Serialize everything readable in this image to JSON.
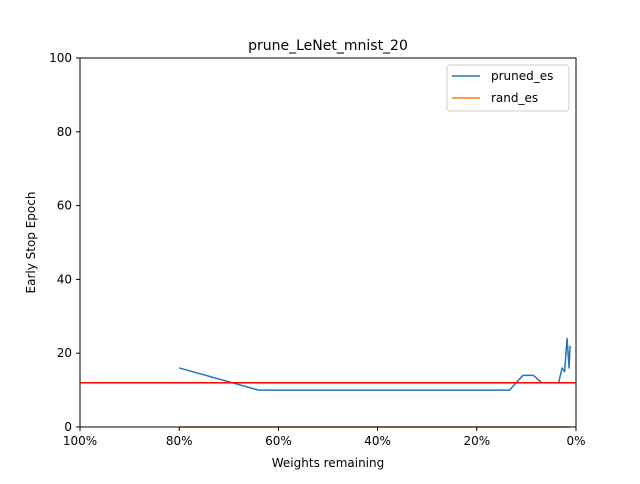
{
  "chart_data": {
    "type": "line",
    "title": "prune_LeNet_mnist_20",
    "xlabel": "Weights remaining",
    "ylabel": "Early Stop Epoch",
    "xlim": [
      100,
      0
    ],
    "ylim": [
      0,
      100
    ],
    "xticks": [
      100,
      80,
      60,
      40,
      20,
      0
    ],
    "xtick_labels": [
      "100%",
      "80%",
      "60%",
      "40%",
      "20%",
      "0%"
    ],
    "yticks": [
      0,
      20,
      40,
      60,
      80,
      100
    ],
    "ytick_labels": [
      "0",
      "20",
      "40",
      "60",
      "80",
      "100"
    ],
    "grid": false,
    "legend": "top-right",
    "series": [
      {
        "name": "pruned_es",
        "color": "#1f77b4",
        "x": [
          80,
          64,
          51.2,
          41,
          32.8,
          26.2,
          21,
          16.8,
          13.4,
          10.7,
          8.6,
          6.9,
          5.5,
          4.4,
          3.5,
          2.8,
          2.3,
          1.8,
          1.4,
          1.2
        ],
        "y": [
          16,
          10,
          10,
          10,
          10,
          10,
          10,
          10,
          10,
          14,
          14,
          12,
          12,
          12,
          12,
          16,
          15,
          24,
          16,
          22
        ]
      },
      {
        "name": "rand_es",
        "color": "#ff7f0e",
        "x": [
          80,
          1.2
        ],
        "y": [
          0,
          0
        ]
      }
    ],
    "hline": {
      "y": 12,
      "color": "#ff0000"
    }
  }
}
